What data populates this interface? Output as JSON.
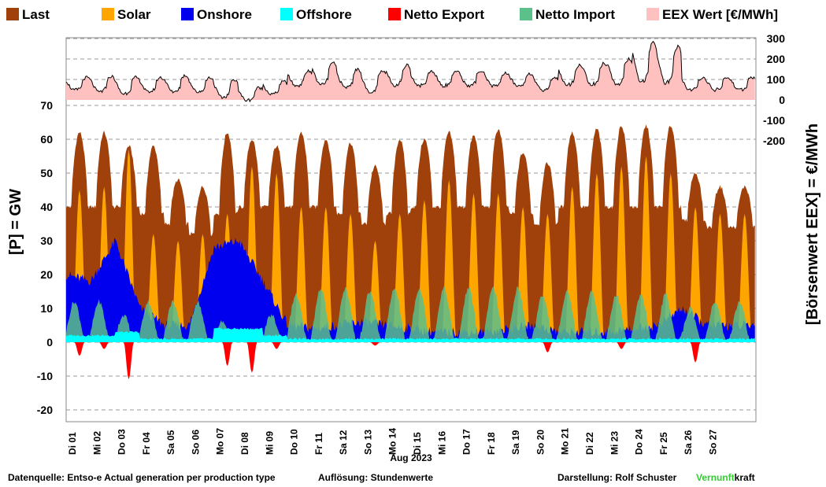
{
  "chart_data": {
    "type": "area",
    "legend": [
      {
        "name": "Last",
        "color": "#A0400A"
      },
      {
        "name": "Solar",
        "color": "#FFA500"
      },
      {
        "name": "Onshore",
        "color": "#0000EE"
      },
      {
        "name": "Offshore",
        "color": "#00FFFF"
      },
      {
        "name": "Netto Export",
        "color": "#FF0000"
      },
      {
        "name": "Netto Import",
        "color": "#5CC08A"
      },
      {
        "name": "EEX Wert [€/MWh]",
        "color": "#FFC0C0"
      }
    ],
    "legend_position": "top",
    "ylabel_left": "[P]  = GW",
    "ylabel_right": "[Börsenwert  EEX]  =  €/MWh",
    "xlabel": "Aug 2023",
    "y_left_ticks": [
      70,
      60,
      50,
      40,
      30,
      20,
      10,
      0,
      -10,
      -20
    ],
    "y_left_range": [
      -20,
      70
    ],
    "y_right_ticks": [
      300,
      200,
      100,
      0,
      -100,
      -200
    ],
    "y_right_range": [
      -200,
      300
    ],
    "grid": "horizontal dashed",
    "x_ticks": [
      "Di 01",
      "Mi 02",
      "Do 03",
      "Fr 04",
      "Sa 05",
      "So 06",
      "Mo 07",
      "Di 08",
      "Mi 09",
      "Do 10",
      "Fr 11",
      "Sa 12",
      "So 13",
      "Mo 14",
      "Di 15",
      "Mi 16",
      "Do 17",
      "Fr 18",
      "Sa 19",
      "So 20",
      "Mo 21",
      "Di 22",
      "Mi 23",
      "Do 24",
      "Fr 25",
      "Sa 26",
      "So 27"
    ],
    "daily": {
      "load_peak": [
        62,
        62,
        58,
        58,
        48,
        46,
        62,
        60,
        58,
        62,
        60,
        59,
        52,
        60,
        60,
        62,
        61,
        63,
        56,
        53,
        62,
        63,
        64,
        64,
        64,
        50,
        46
      ],
      "load_min": [
        40,
        40,
        40,
        38,
        35,
        32,
        38,
        40,
        40,
        40,
        40,
        38,
        35,
        38,
        40,
        40,
        40,
        40,
        38,
        35,
        40,
        40,
        40,
        40,
        40,
        36,
        34
      ],
      "solar_peak": [
        45,
        46,
        57,
        32,
        30,
        32,
        38,
        52,
        50,
        40,
        40,
        38,
        30,
        38,
        42,
        48,
        44,
        44,
        40,
        38,
        46,
        50,
        52,
        55,
        50,
        40,
        38
      ],
      "onshore": [
        20,
        18,
        30,
        10,
        5,
        5,
        28,
        30,
        18,
        5,
        4,
        5,
        6,
        5,
        4,
        3,
        3,
        3,
        4,
        5,
        3,
        3,
        3,
        4,
        5,
        10,
        5
      ],
      "offshore": [
        2,
        2,
        3,
        1,
        1,
        1,
        4,
        4,
        2,
        1,
        1,
        1,
        1,
        1,
        1,
        1,
        1,
        1,
        1,
        1,
        1,
        1,
        1,
        1,
        1,
        1,
        1
      ],
      "net_import_peak": [
        12,
        12,
        8,
        12,
        12,
        12,
        6,
        3,
        8,
        14,
        16,
        16,
        15,
        16,
        16,
        16,
        16,
        16,
        16,
        14,
        15,
        15,
        14,
        14,
        14,
        10,
        12
      ],
      "net_export_min": [
        -4,
        -2,
        -11,
        0,
        0,
        0,
        -7,
        -9,
        -2,
        0,
        0,
        0,
        -1,
        0,
        0,
        0,
        0,
        0,
        0,
        -3,
        0,
        0,
        -2,
        0,
        0,
        -6,
        0
      ],
      "eex_peak": [
        110,
        115,
        110,
        110,
        120,
        110,
        100,
        60,
        90,
        140,
        180,
        150,
        140,
        170,
        140,
        140,
        140,
        130,
        130,
        110,
        170,
        180,
        200,
        280,
        260,
        110,
        110
      ],
      "eex_min": [
        40,
        30,
        20,
        30,
        30,
        30,
        0,
        -10,
        20,
        60,
        60,
        50,
        20,
        60,
        60,
        60,
        60,
        60,
        60,
        40,
        60,
        60,
        60,
        60,
        60,
        40,
        40
      ]
    }
  },
  "footer": {
    "source": "Datenquelle: Entso-e  Actual generation per production type",
    "resolution": "Auflösung: Stundenwerte",
    "author": "Darstellung:  Rolf Schuster",
    "brand_green": "Vernunft",
    "brand_black": "kraft",
    "brand_color": "#33CC33"
  }
}
